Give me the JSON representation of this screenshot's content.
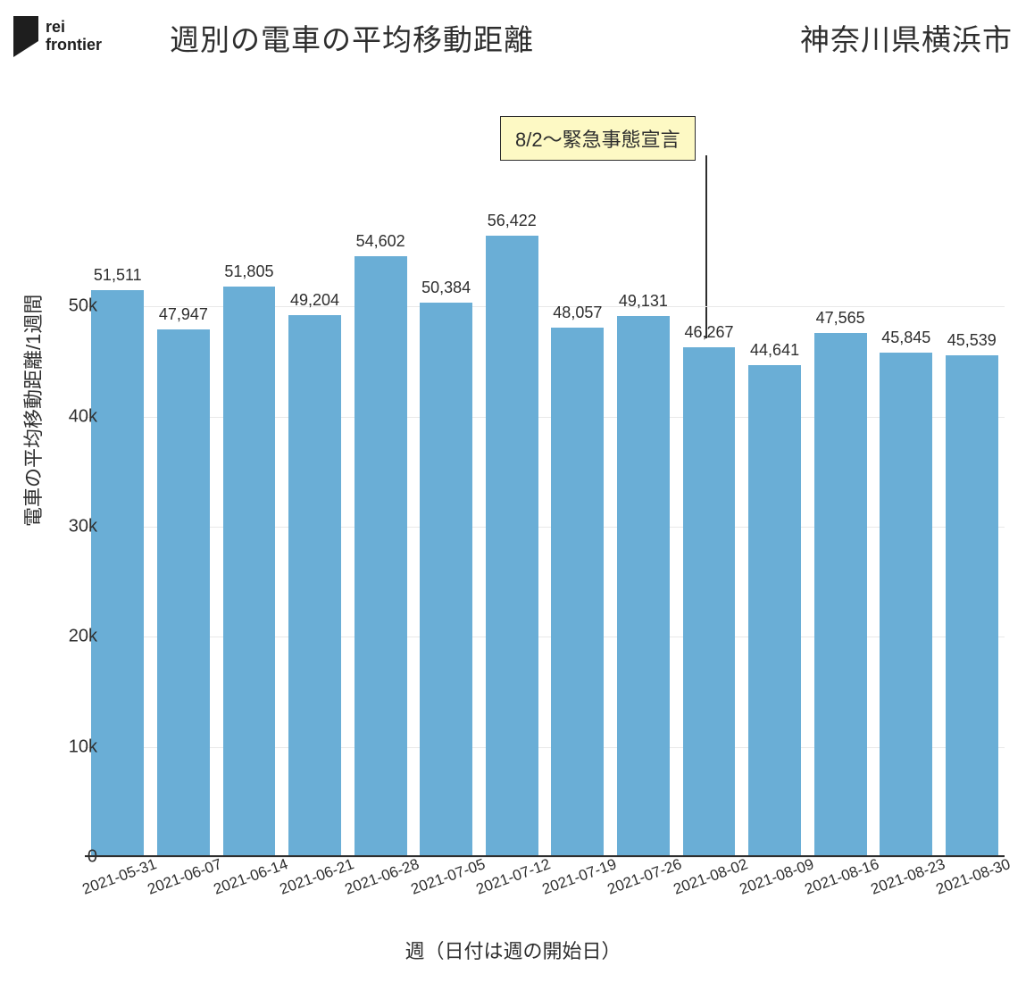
{
  "logo": {
    "brand_top": "rei",
    "brand_bottom": "frontier"
  },
  "title": "週別の電車の平均移動距離",
  "subtitle": "神奈川県横浜市",
  "ylabel": "電車の平均移動距離/1週間",
  "xlabel": "週（日付は週の開始日）",
  "annotation": {
    "text": "8/2〜緊急事態宣言",
    "target_index": 9,
    "box_bg": "#fdf9c4",
    "box_border": "#2e2e2e"
  },
  "chart": {
    "type": "bar",
    "bar_color": "#6aaed6",
    "grid_color": "#e8e8e8",
    "text_color": "#2e2e2e",
    "background_color": "#ffffff",
    "bar_width_ratio": 0.8,
    "ylim": [
      0,
      60000
    ],
    "yticks": [
      0,
      10000,
      20000,
      30000,
      40000,
      50000
    ],
    "ytick_labels": [
      "0",
      "10k",
      "20k",
      "30k",
      "40k",
      "50k"
    ],
    "categories": [
      "2021-05-31",
      "2021-06-07",
      "2021-06-14",
      "2021-06-21",
      "2021-06-28",
      "2021-07-05",
      "2021-07-12",
      "2021-07-19",
      "2021-07-26",
      "2021-08-02",
      "2021-08-09",
      "2021-08-16",
      "2021-08-23",
      "2021-08-30"
    ],
    "values": [
      51511,
      47947,
      51805,
      49204,
      54602,
      50384,
      56422,
      48057,
      49131,
      46267,
      44641,
      47565,
      45845,
      45539
    ],
    "value_labels": [
      "51,511",
      "47,947",
      "51,805",
      "49,204",
      "54,602",
      "50,384",
      "56,422",
      "48,057",
      "49,131",
      "46,267",
      "44,641",
      "47,565",
      "45,845",
      "45,539"
    ],
    "title_fontsize": 33,
    "label_fontsize": 22,
    "tick_fontsize": 20,
    "barlabel_fontsize": 18,
    "xtick_fontsize": 17,
    "xtick_rotation": -20
  }
}
